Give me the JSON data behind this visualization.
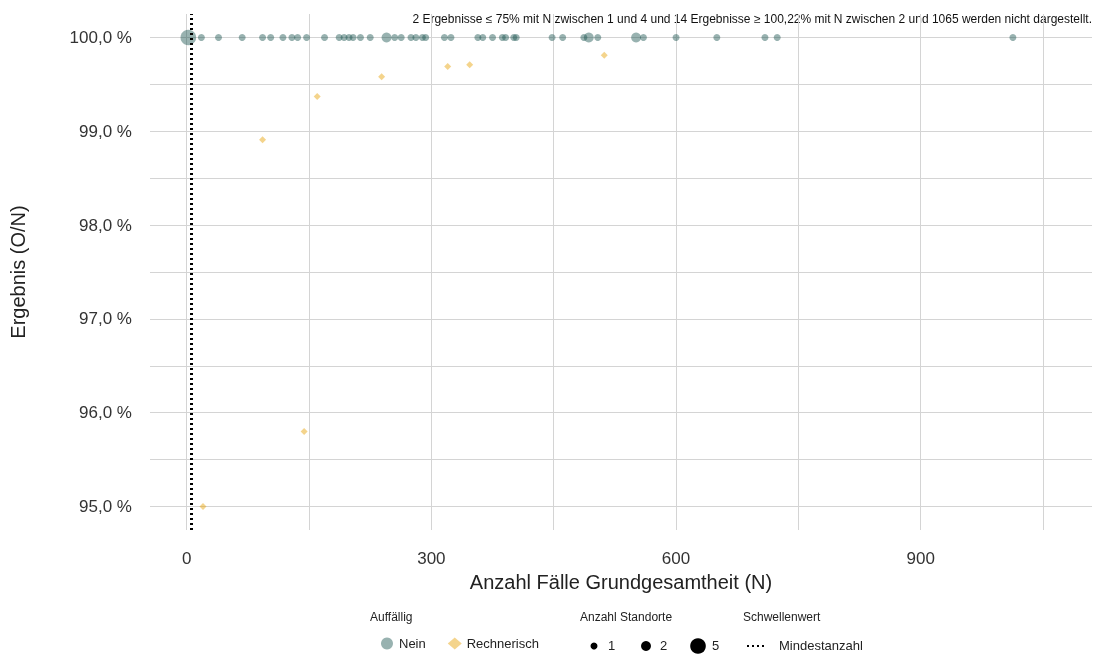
{
  "chart_data": {
    "type": "bubble",
    "xlabel": "Anzahl Fälle Grundgesamtheit (N)",
    "ylabel": "Ergebnis (O/N)",
    "annotations": [
      "2 Ergebnisse ≤ 75% mit N zwischen 1 und 4 und 14 Ergebnisse ≥ 100,22% mit N zwischen 2 und 1065 werden nicht dargestellt."
    ],
    "legend_title": [
      "Auffällig",
      "Anzahl Standorte",
      "Schwellenwert"
    ],
    "xlim": [
      -45,
      1110
    ],
    "ylim": [
      94.75,
      100.25
    ],
    "xticks": [
      0,
      {
        "value": 150,
        "label": null
      },
      300,
      {
        "value": 450,
        "label": null
      },
      600,
      {
        "value": 750,
        "label": null
      },
      900,
      {
        "value": 1050,
        "label": null
      }
    ],
    "yticks": [
      {
        "value": 95,
        "label": "95,0 %"
      },
      {
        "value": 95.5,
        "label": null
      },
      {
        "value": 96,
        "label": "96,0 %"
      },
      {
        "value": 96.5,
        "label": null
      },
      {
        "value": 97,
        "label": "97,0 %"
      },
      {
        "value": 97.5,
        "label": null
      },
      {
        "value": 98,
        "label": "98,0 %"
      },
      {
        "value": 98.5,
        "label": null
      },
      {
        "value": 99,
        "label": "99,0 %"
      },
      {
        "value": 99.5,
        "label": null
      },
      {
        "value": 100,
        "label": "100,0 %"
      }
    ],
    "grid": true,
    "legend": "bottom",
    "size_legend": [
      1,
      2,
      5
    ],
    "ref_lines": [
      {
        "axis": "x",
        "value": 5,
        "label": "Mindestanzahl",
        "line_style": "dotted",
        "color": "#000000"
      }
    ],
    "series": [
      {
        "name": "Nein",
        "color": "#1b5450",
        "marker": "circle",
        "x": [
          2,
          18,
          39,
          68,
          93,
          103,
          118,
          129,
          136,
          147,
          169,
          187,
          193,
          199,
          204,
          213,
          225,
          245,
          255,
          263,
          275,
          281,
          289,
          293,
          316,
          324,
          357,
          363,
          375,
          387,
          391,
          401,
          404,
          448,
          461,
          487,
          493,
          504,
          551,
          560,
          600,
          650,
          709,
          724,
          1013
        ],
        "values": [
          100,
          100,
          100,
          100,
          100,
          100,
          100,
          100,
          100,
          100,
          100,
          100,
          100,
          100,
          100,
          100,
          100,
          100,
          100,
          100,
          100,
          100,
          100,
          100,
          100,
          100,
          100,
          100,
          100,
          100,
          100,
          100,
          100,
          100,
          100,
          100,
          100,
          100,
          100,
          100,
          100,
          100,
          100,
          100,
          100
        ],
        "sizes": [
          5,
          1,
          1,
          1,
          1,
          1,
          1,
          1,
          1,
          1,
          1,
          1,
          1,
          1,
          1,
          1,
          1,
          2,
          1,
          1,
          1,
          1,
          1,
          1,
          1,
          1,
          1,
          1,
          1,
          1,
          1,
          1,
          1,
          1,
          1,
          1,
          2,
          1,
          2,
          1,
          1,
          1,
          1,
          1,
          1
        ]
      },
      {
        "name": "Rechnerisch",
        "color": "#e69f00",
        "marker": "diamond",
        "x": [
          20,
          93,
          144,
          160,
          239,
          320,
          347,
          512
        ],
        "values": [
          95.0,
          98.91,
          95.8,
          99.37,
          99.58,
          99.69,
          99.71,
          99.81
        ],
        "sizes": [
          1,
          1,
          1,
          1,
          1,
          1,
          1,
          1
        ]
      }
    ]
  }
}
